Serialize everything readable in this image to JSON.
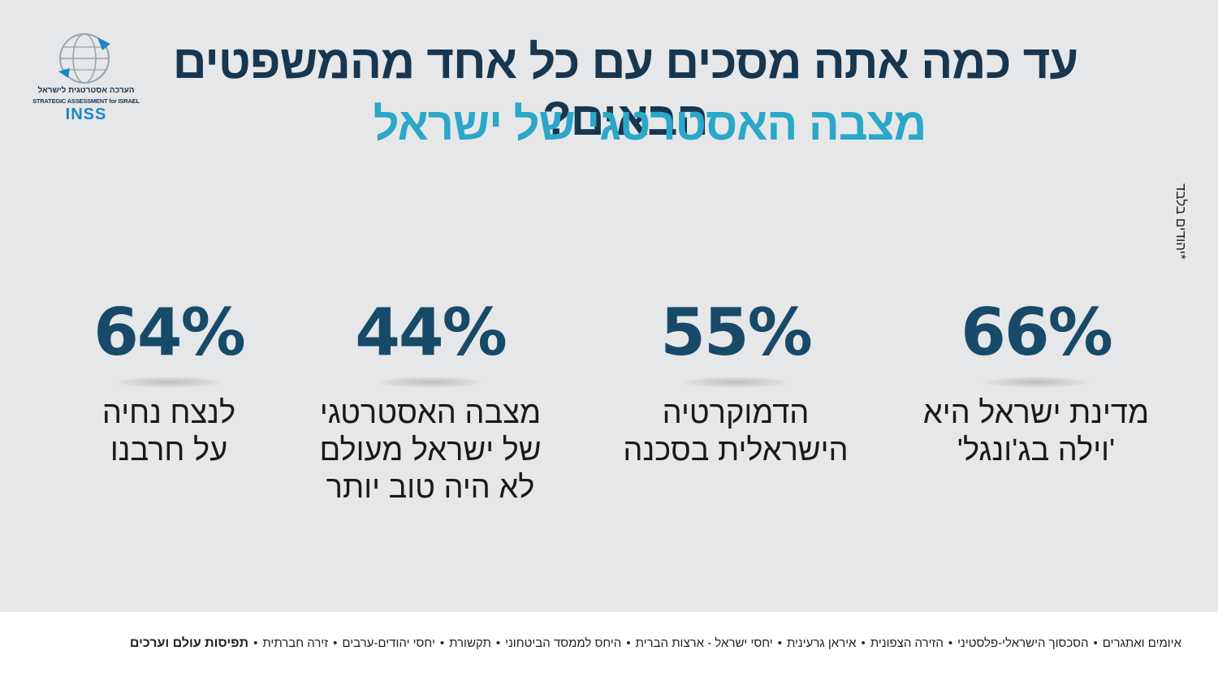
{
  "title": "עד כמה אתה מסכים עם כל אחד מהמשפטים הבאים?",
  "subtitle": "מצבה האסטרטגי של ישראל",
  "side_note": "*יהודים בלבד",
  "logo": {
    "hebrew": "הערכה אסטרטגית לישראל",
    "english": "STRATEGIC ASSESSMENT for ISRAEL",
    "brand": "INSS"
  },
  "stats": [
    {
      "value": "66%",
      "label": "מדינת ישראל היא\n'וילה בג'ונגל'"
    },
    {
      "value": "55%",
      "label": "הדמוקרטיה\nהישראלית בסכנה"
    },
    {
      "value": "44%",
      "label": "מצבה האסטרטגי\nשל ישראל מעולם\nלא היה טוב יותר"
    },
    {
      "value": "64%",
      "label": "לנצח נחיה\nעל חרבנו"
    }
  ],
  "footer": {
    "items": [
      "איומים ואתגרים",
      "הסכסוך הישראלי-פלסטיני",
      "הזירה הצפונית",
      "איראן גרעינית",
      "יחסי ישראל - ארצות הברית",
      "היחס לממסד הביטחוני",
      "תקשורת",
      "יחסי יהודים-ערבים",
      "זירה חברתית"
    ],
    "active": "תפיסות עולם וערכים"
  }
}
